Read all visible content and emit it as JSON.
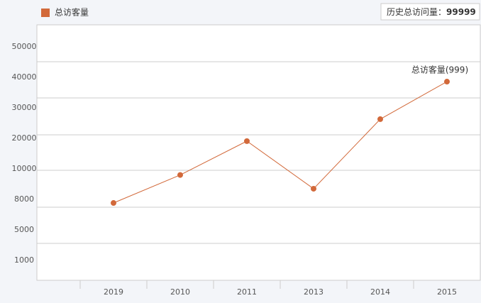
{
  "chart_data": {
    "type": "line",
    "summary": {
      "label": "历史总访问量：",
      "value": 99999
    },
    "categories": [
      "2019",
      "2010",
      "2011",
      "2013",
      "2014",
      "2015"
    ],
    "series": [
      {
        "name": "总访客量",
        "color": "#d2693a",
        "values": [
          7650,
          9600,
          19100,
          8700,
          26300,
          38600
        ]
      }
    ],
    "annotation": "总访客量(999)",
    "yticks": [
      50000,
      40000,
      30000,
      20000,
      10000,
      8000,
      5000,
      1000
    ],
    "grid": true
  }
}
